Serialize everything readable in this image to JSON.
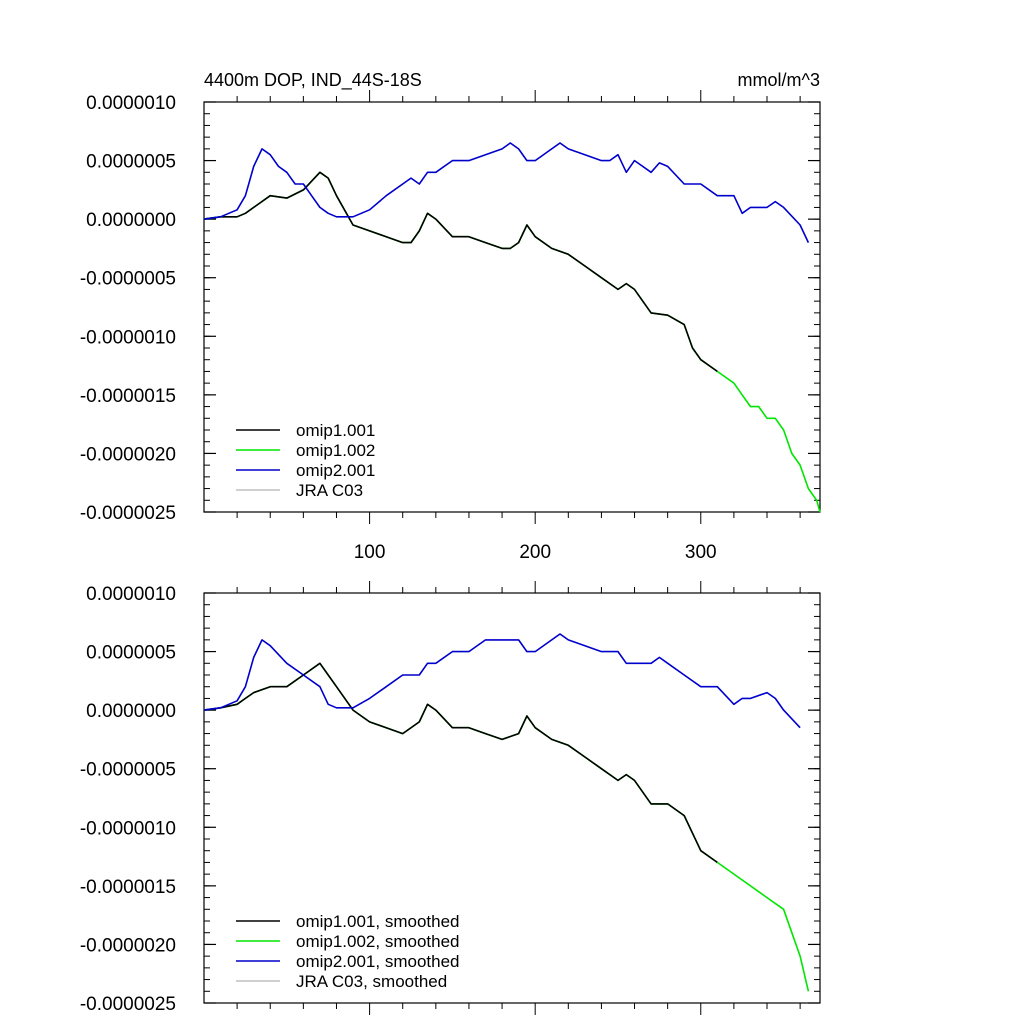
{
  "figure": {
    "title_left": "4400m DOP, IND_44S-18S",
    "title_right": "mmol/m^3"
  },
  "chart_data": [
    {
      "type": "line",
      "title": "4400m DOP, IND_44S-18S",
      "units": "mmol/m^3",
      "xlabel": "",
      "ylabel": "",
      "xlim": [
        0,
        372
      ],
      "ylim": [
        -2.5e-06,
        1e-06
      ],
      "xticks": [
        100,
        200,
        300
      ],
      "xtick_labels": [
        "100",
        "200",
        "300"
      ],
      "yticks": [
        1e-06,
        5e-07,
        0.0,
        -5e-07,
        -1e-06,
        -1.5e-06,
        -2e-06,
        -2.5e-06
      ],
      "ytick_labels": [
        "0.0000010",
        "0.0000005",
        "0.0000000",
        "-0.0000005",
        "-0.0000010",
        "-0.0000015",
        "-0.0000020",
        "-0.0000025"
      ],
      "grid": false,
      "legend_position": "bottom-left",
      "series": [
        {
          "name": "omip1.001",
          "color": "#000000",
          "x": [
            0,
            10,
            20,
            25,
            30,
            40,
            50,
            60,
            70,
            75,
            80,
            90,
            100,
            110,
            120,
            125,
            130,
            135,
            140,
            150,
            160,
            170,
            180,
            185,
            190,
            195,
            200,
            210,
            220,
            230,
            240,
            250,
            255,
            260,
            270,
            280,
            290,
            295,
            300,
            310
          ],
          "y": [
            0.0,
            2e-08,
            2e-08,
            5e-08,
            1e-07,
            2e-07,
            1.8e-07,
            2.5e-07,
            4e-07,
            3.5e-07,
            2e-07,
            -5e-08,
            -1e-07,
            -1.5e-07,
            -2e-07,
            -2e-07,
            -1e-07,
            5e-08,
            0.0,
            -1.5e-07,
            -1.5e-07,
            -2e-07,
            -2.5e-07,
            -2.5e-07,
            -2e-07,
            -5e-08,
            -1.5e-07,
            -2.5e-07,
            -3e-07,
            -4e-07,
            -5e-07,
            -6e-07,
            -5.5e-07,
            -6e-07,
            -8e-07,
            -8.2e-07,
            -9e-07,
            -1.1e-06,
            -1.2e-06,
            -1.3e-06
          ]
        },
        {
          "name": "omip1.002",
          "color": "#00e600",
          "x": [
            0,
            10,
            20,
            25,
            30,
            40,
            50,
            60,
            70,
            75,
            80,
            90,
            100,
            110,
            120,
            125,
            130,
            135,
            140,
            150,
            160,
            170,
            180,
            185,
            190,
            195,
            200,
            210,
            220,
            230,
            240,
            250,
            255,
            260,
            270,
            280,
            290,
            295,
            300,
            310,
            320,
            325,
            330,
            335,
            340,
            345,
            350,
            355,
            360,
            365,
            370,
            372
          ],
          "y": [
            0.0,
            2e-08,
            2e-08,
            5e-08,
            1e-07,
            2e-07,
            1.8e-07,
            2.5e-07,
            4e-07,
            3.5e-07,
            2e-07,
            -5e-08,
            -1e-07,
            -1.5e-07,
            -2e-07,
            -2e-07,
            -1e-07,
            5e-08,
            0.0,
            -1.5e-07,
            -1.5e-07,
            -2e-07,
            -2.5e-07,
            -2.5e-07,
            -2e-07,
            -5e-08,
            -1.5e-07,
            -2.5e-07,
            -3e-07,
            -4e-07,
            -5e-07,
            -6e-07,
            -5.5e-07,
            -6e-07,
            -8e-07,
            -8.2e-07,
            -9e-07,
            -1.1e-06,
            -1.2e-06,
            -1.3e-06,
            -1.4e-06,
            -1.5e-06,
            -1.6e-06,
            -1.6e-06,
            -1.7e-06,
            -1.7e-06,
            -1.8e-06,
            -2e-06,
            -2.1e-06,
            -2.3e-06,
            -2.4e-06,
            -2.5e-06
          ]
        },
        {
          "name": "omip2.001",
          "color": "#0000cc",
          "x": [
            0,
            10,
            20,
            25,
            30,
            35,
            40,
            45,
            50,
            55,
            60,
            65,
            70,
            75,
            80,
            90,
            100,
            110,
            120,
            125,
            130,
            135,
            140,
            150,
            160,
            170,
            180,
            185,
            190,
            195,
            200,
            210,
            215,
            220,
            230,
            240,
            245,
            250,
            255,
            260,
            270,
            275,
            280,
            290,
            300,
            310,
            320,
            325,
            330,
            340,
            345,
            350,
            360,
            365
          ],
          "y": [
            0.0,
            2e-08,
            8e-08,
            2e-07,
            4.5e-07,
            6e-07,
            5.5e-07,
            4.5e-07,
            4e-07,
            3e-07,
            3e-07,
            2e-07,
            1e-07,
            5e-08,
            2e-08,
            2e-08,
            8e-08,
            2e-07,
            3e-07,
            3.5e-07,
            3e-07,
            4e-07,
            4e-07,
            5e-07,
            5e-07,
            5.5e-07,
            6e-07,
            6.5e-07,
            6e-07,
            5e-07,
            5e-07,
            6e-07,
            6.5e-07,
            6e-07,
            5.5e-07,
            5e-07,
            5e-07,
            5.5e-07,
            4e-07,
            5e-07,
            4e-07,
            4.8e-07,
            4.5e-07,
            3e-07,
            3e-07,
            2e-07,
            2e-07,
            5e-08,
            1e-07,
            1e-07,
            1.5e-07,
            1e-07,
            -5e-08,
            -2e-07
          ]
        },
        {
          "name": "JRA C03",
          "color": "#c0c0c0",
          "x": [],
          "y": []
        }
      ]
    },
    {
      "type": "line",
      "title": "",
      "xlabel": "",
      "ylabel": "",
      "xlim": [
        0,
        372
      ],
      "ylim": [
        -2.5e-06,
        1e-06
      ],
      "xticks": [
        100,
        200,
        300
      ],
      "xtick_labels": [],
      "yticks": [
        1e-06,
        5e-07,
        0.0,
        -5e-07,
        -1e-06,
        -1.5e-06,
        -2e-06,
        -2.5e-06
      ],
      "ytick_labels": [
        "0.0000010",
        "0.0000005",
        "0.0000000",
        "-0.0000005",
        "-0.0000010",
        "-0.0000015",
        "-0.0000020",
        "-0.0000025"
      ],
      "grid": false,
      "legend_position": "bottom-left",
      "series": [
        {
          "name": "omip1.001, smoothed",
          "color": "#000000",
          "x": [
            0,
            10,
            20,
            25,
            30,
            40,
            50,
            60,
            70,
            75,
            80,
            90,
            100,
            110,
            120,
            130,
            135,
            140,
            150,
            160,
            170,
            180,
            190,
            195,
            200,
            210,
            220,
            230,
            240,
            250,
            255,
            260,
            270,
            280,
            290,
            300,
            310
          ],
          "y": [
            0.0,
            2e-08,
            5e-08,
            1e-07,
            1.5e-07,
            2e-07,
            2e-07,
            3e-07,
            4e-07,
            3e-07,
            2e-07,
            0.0,
            -1e-07,
            -1.5e-07,
            -2e-07,
            -1e-07,
            5e-08,
            0.0,
            -1.5e-07,
            -1.5e-07,
            -2e-07,
            -2.5e-07,
            -2e-07,
            -5e-08,
            -1.5e-07,
            -2.5e-07,
            -3e-07,
            -4e-07,
            -5e-07,
            -6e-07,
            -5.5e-07,
            -6e-07,
            -8e-07,
            -8e-07,
            -9e-07,
            -1.2e-06,
            -1.3e-06
          ]
        },
        {
          "name": "omip1.002, smoothed",
          "color": "#00e600",
          "x": [
            0,
            10,
            20,
            25,
            30,
            40,
            50,
            60,
            70,
            75,
            80,
            90,
            100,
            110,
            120,
            130,
            135,
            140,
            150,
            160,
            170,
            180,
            190,
            195,
            200,
            210,
            220,
            230,
            240,
            250,
            255,
            260,
            270,
            280,
            290,
            300,
            310,
            320,
            330,
            340,
            350,
            360,
            365
          ],
          "y": [
            0.0,
            2e-08,
            5e-08,
            1e-07,
            1.5e-07,
            2e-07,
            2e-07,
            3e-07,
            4e-07,
            3e-07,
            2e-07,
            0.0,
            -1e-07,
            -1.5e-07,
            -2e-07,
            -1e-07,
            5e-08,
            0.0,
            -1.5e-07,
            -1.5e-07,
            -2e-07,
            -2.5e-07,
            -2e-07,
            -5e-08,
            -1.5e-07,
            -2.5e-07,
            -3e-07,
            -4e-07,
            -5e-07,
            -6e-07,
            -5.5e-07,
            -6e-07,
            -8e-07,
            -8e-07,
            -9e-07,
            -1.2e-06,
            -1.3e-06,
            -1.4e-06,
            -1.5e-06,
            -1.6e-06,
            -1.7e-06,
            -2.1e-06,
            -2.4e-06
          ]
        },
        {
          "name": "omip2.001, smoothed",
          "color": "#0000cc",
          "x": [
            0,
            10,
            20,
            25,
            30,
            35,
            40,
            50,
            60,
            70,
            75,
            80,
            90,
            100,
            110,
            120,
            130,
            135,
            140,
            150,
            160,
            170,
            180,
            190,
            195,
            200,
            210,
            215,
            220,
            230,
            240,
            250,
            255,
            260,
            270,
            275,
            280,
            290,
            300,
            310,
            320,
            325,
            330,
            340,
            345,
            350,
            360
          ],
          "y": [
            0.0,
            2e-08,
            8e-08,
            2e-07,
            4.5e-07,
            6e-07,
            5.5e-07,
            4e-07,
            3e-07,
            2e-07,
            5e-08,
            2e-08,
            2e-08,
            1e-07,
            2e-07,
            3e-07,
            3e-07,
            4e-07,
            4e-07,
            5e-07,
            5e-07,
            6e-07,
            6e-07,
            6e-07,
            5e-07,
            5e-07,
            6e-07,
            6.5e-07,
            6e-07,
            5.5e-07,
            5e-07,
            5e-07,
            4e-07,
            4e-07,
            4e-07,
            4.5e-07,
            4e-07,
            3e-07,
            2e-07,
            2e-07,
            5e-08,
            1e-07,
            1e-07,
            1.5e-07,
            1e-07,
            0.0,
            -1.5e-07
          ]
        },
        {
          "name": "JRA C03, smoothed",
          "color": "#c0c0c0",
          "x": [],
          "y": []
        }
      ]
    }
  ]
}
